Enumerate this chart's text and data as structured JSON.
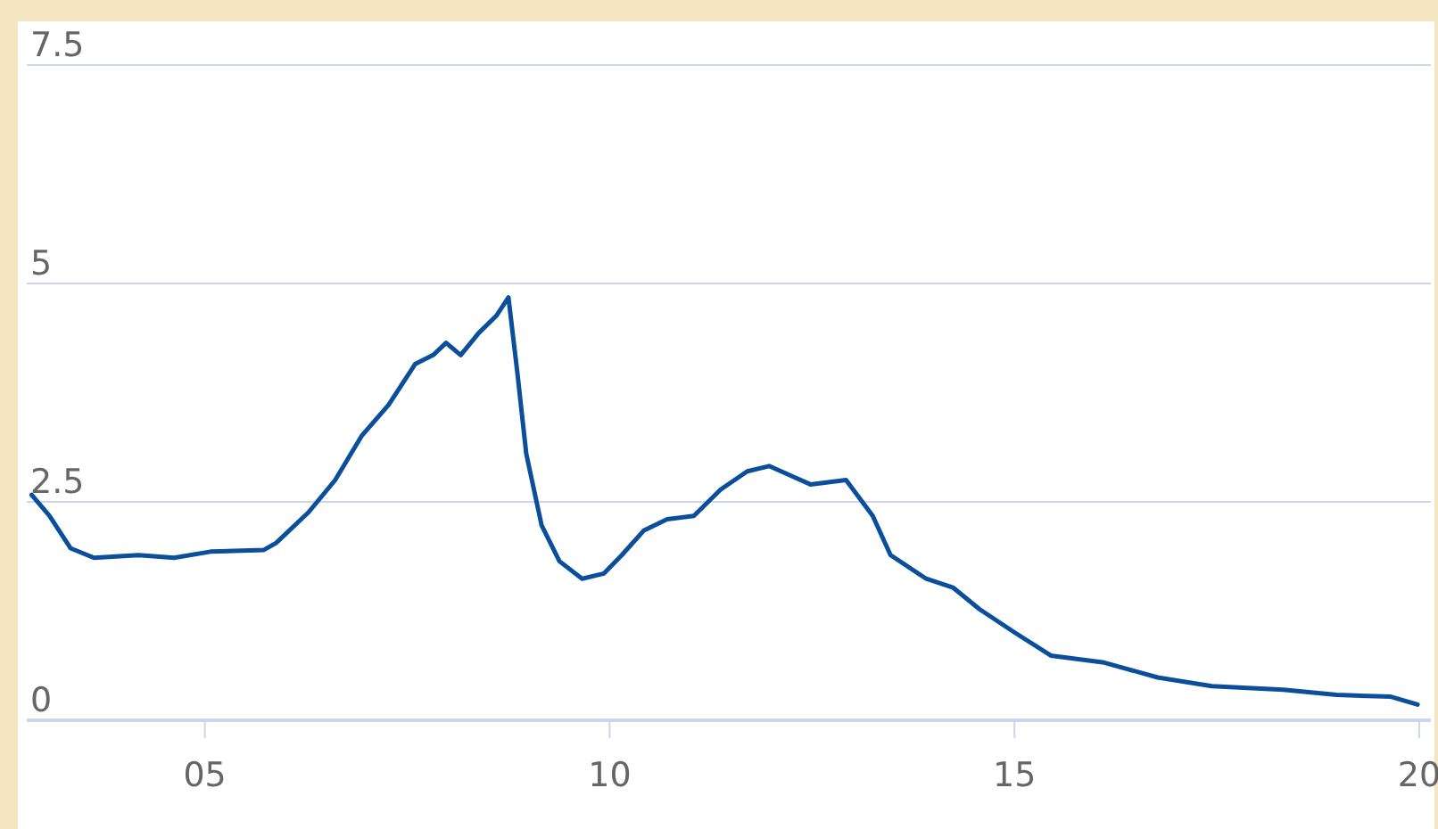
{
  "chart_data": {
    "type": "line",
    "x": [
      2002.86,
      2003.08,
      2003.34,
      2003.63,
      2004.18,
      2004.62,
      2005.07,
      2005.73,
      2005.88,
      2006.28,
      2006.61,
      2006.94,
      2007.27,
      2007.6,
      2007.82,
      2007.98,
      2008.16,
      2008.38,
      2008.6,
      2008.75,
      2008.86,
      2008.97,
      2009.16,
      2009.38,
      2009.66,
      2009.93,
      2010.15,
      2010.42,
      2010.71,
      2011.04,
      2011.37,
      2011.7,
      2011.97,
      2012.26,
      2012.48,
      2012.92,
      2013.25,
      2013.47,
      2013.91,
      2014.24,
      2014.57,
      2015.01,
      2015.45,
      2016.11,
      2016.77,
      2017.44,
      2018.32,
      2018.98,
      2019.65,
      2019.98
    ],
    "series": [
      {
        "color": "#0b4f9c",
        "values": [
          2.58,
          2.34,
          1.97,
          1.86,
          1.89,
          1.86,
          1.93,
          1.95,
          2.03,
          2.38,
          2.75,
          3.26,
          3.61,
          4.08,
          4.18,
          4.32,
          4.18,
          4.43,
          4.63,
          4.84,
          3.98,
          3.05,
          2.23,
          1.82,
          1.62,
          1.68,
          1.89,
          2.17,
          2.3,
          2.34,
          2.64,
          2.85,
          2.91,
          2.79,
          2.7,
          2.75,
          2.34,
          1.89,
          1.62,
          1.52,
          1.27,
          1.0,
          0.74,
          0.66,
          0.49,
          0.39,
          0.35,
          0.29,
          0.27,
          0.18
        ]
      }
    ],
    "xlim": [
      2002.8,
      2020.1
    ],
    "xticks": [
      {
        "value": 2005,
        "label": "05"
      },
      {
        "value": 2010,
        "label": "10"
      },
      {
        "value": 2015,
        "label": "15"
      },
      {
        "value": 2020,
        "label": "20"
      }
    ],
    "ylim": [
      0,
      8
    ],
    "yticks": [
      0,
      2.5,
      5,
      7.5
    ],
    "grid": "y",
    "marker": "none",
    "line_style": "solid"
  }
}
